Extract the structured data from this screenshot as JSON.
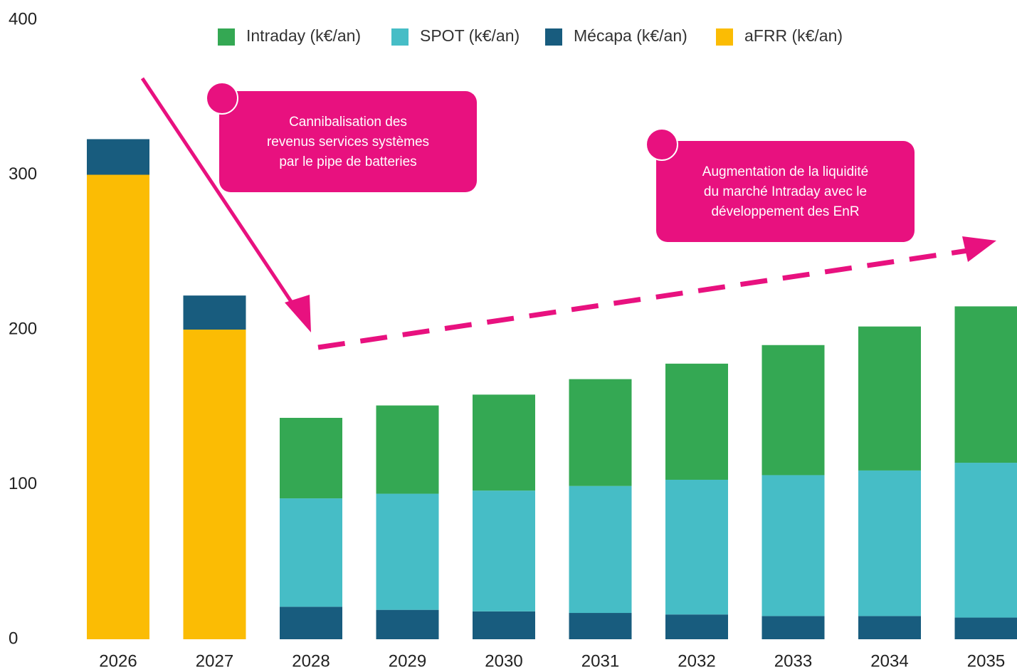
{
  "chart_data": {
    "type": "stacked_bar",
    "categories": [
      "2026",
      "2027",
      "2028",
      "2029",
      "2030",
      "2031",
      "2032",
      "2033",
      "2034",
      "2035"
    ],
    "series": [
      {
        "name": "Intraday (k€/an)",
        "color": "#34a853",
        "values": [
          null,
          null,
          52,
          57,
          62,
          69,
          75,
          84,
          93,
          101
        ]
      },
      {
        "name": "SPOT (k€/an)",
        "color": "#46bdc6",
        "values": [
          null,
          null,
          70,
          75,
          78,
          82,
          87,
          91,
          94,
          100
        ]
      },
      {
        "name": "Mécapa (k€/an)",
        "color": "#185c7e",
        "values": [
          23,
          22,
          21,
          19,
          18,
          17,
          16,
          15,
          15,
          14
        ]
      },
      {
        "name": "aFRR (k€/an)",
        "color": "#fbbc04",
        "values": [
          300,
          200,
          null,
          null,
          null,
          null,
          null,
          null,
          null,
          null
        ]
      }
    ],
    "ylim": [
      0,
      400
    ],
    "yticks": [
      0,
      100,
      200,
      300,
      400
    ],
    "annotations": [
      {
        "lines": [
          "Cannibalisation des",
          "revenus services systèmes",
          "par le pipe de  batteries"
        ],
        "color": "#e8117f"
      },
      {
        "lines": [
          "Augmentation de la liquidité",
          "du marché Intraday avec le",
          "développement des EnR"
        ],
        "color": "#e8117f"
      }
    ]
  }
}
